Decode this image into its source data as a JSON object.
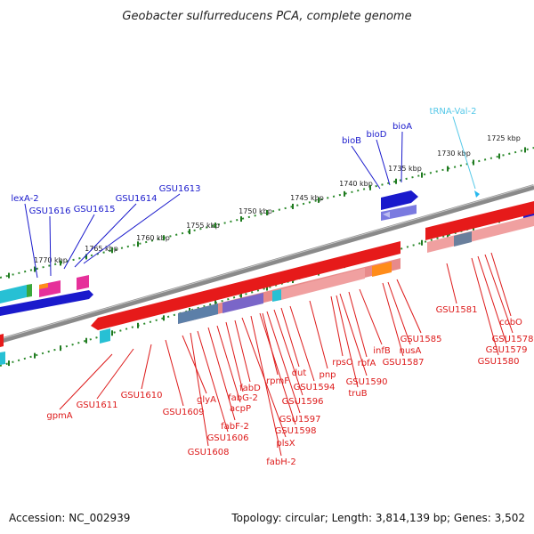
{
  "title": "Geobacter sulfurreducens PCA, complete genome",
  "accession": "Accession: NC_002939",
  "topology": "Topology: circular; Length: 3,814,139 bp; Genes: 3,502",
  "colors": {
    "forward": "#1a1acc",
    "reverse": "#dd1a1a",
    "trna": "#55c8e8",
    "axis": "#888888",
    "ticks": "#1f7a1f"
  },
  "scale": {
    "ticks": [
      {
        "kbp": 1725,
        "label": "1725 kbp"
      },
      {
        "kbp": 1730,
        "label": "1730 kbp"
      },
      {
        "kbp": 1735,
        "label": "1735 kbp"
      },
      {
        "kbp": 1740,
        "label": "1740 kbp"
      },
      {
        "kbp": 1745,
        "label": "1745 kbp"
      },
      {
        "kbp": 1750,
        "label": "1750 kbp"
      },
      {
        "kbp": 1755,
        "label": "1755 kbp"
      },
      {
        "kbp": 1760,
        "label": "1760 kbp"
      },
      {
        "kbp": 1765,
        "label": "1765 kbp"
      },
      {
        "kbp": 1770,
        "label": "1770 kbp"
      }
    ]
  },
  "genes_forward": [
    {
      "name": "lexA-2"
    },
    {
      "name": "GSU1616"
    },
    {
      "name": "GSU1615"
    },
    {
      "name": "GSU1614"
    },
    {
      "name": "GSU1613"
    },
    {
      "name": "bioB"
    },
    {
      "name": "bioD"
    },
    {
      "name": "bioA"
    }
  ],
  "genes_trna": [
    {
      "name": "tRNA-Val-2"
    }
  ],
  "genes_reverse": [
    {
      "name": "gpmA"
    },
    {
      "name": "GSU1611"
    },
    {
      "name": "GSU1610"
    },
    {
      "name": "GSU1609"
    },
    {
      "name": "glyA"
    },
    {
      "name": "GSU1606"
    },
    {
      "name": "fabF-2"
    },
    {
      "name": "GSU1608"
    },
    {
      "name": "acpP"
    },
    {
      "name": "fabG-2"
    },
    {
      "name": "fabD"
    },
    {
      "name": "plsX"
    },
    {
      "name": "fabH-2"
    },
    {
      "name": "rpmF"
    },
    {
      "name": "GSU1597"
    },
    {
      "name": "GSU1598"
    },
    {
      "name": "GSU1596"
    },
    {
      "name": "dut"
    },
    {
      "name": "GSU1594"
    },
    {
      "name": "pnp"
    },
    {
      "name": "rpsO"
    },
    {
      "name": "truB"
    },
    {
      "name": "GSU1590"
    },
    {
      "name": "rbfA"
    },
    {
      "name": "infB"
    },
    {
      "name": "GSU1587"
    },
    {
      "name": "nusA"
    },
    {
      "name": "GSU1585"
    },
    {
      "name": "GSU1581"
    },
    {
      "name": "GSU1580"
    },
    {
      "name": "GSU1579"
    },
    {
      "name": "GSU1578"
    },
    {
      "name": "cobO"
    }
  ]
}
